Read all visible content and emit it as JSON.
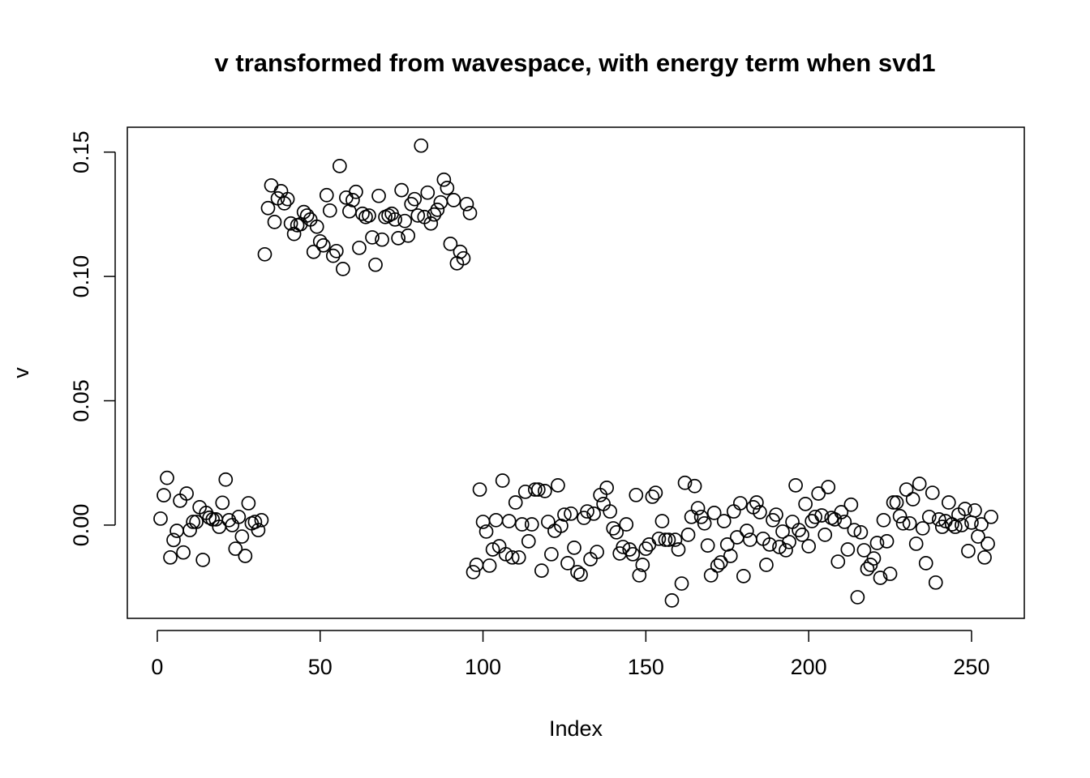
{
  "chart_data": {
    "type": "scatter",
    "title": "v transformed from wavespace, with energy term when svd1",
    "x_label": "Index",
    "y_label": "v",
    "color": "#000000",
    "xlim": [
      -9.2,
      266.2
    ],
    "ylim": [
      -0.0375,
      0.16
    ],
    "xticks": [
      0,
      50,
      100,
      150,
      200,
      250
    ],
    "yticks": [
      {
        "value": 0,
        "label": "0.00"
      },
      {
        "value": 0.05,
        "label": "0.05"
      },
      {
        "value": 0.1,
        "label": "0.10"
      },
      {
        "value": 0.15,
        "label": "0.15"
      }
    ],
    "x": [
      1,
      2,
      3,
      4,
      5,
      6,
      7,
      8,
      9,
      10,
      11,
      12,
      13,
      14,
      15,
      16,
      17,
      18,
      19,
      20,
      21,
      22,
      23,
      24,
      25,
      26,
      27,
      28,
      29,
      30,
      31,
      32,
      33,
      34,
      35,
      36,
      37,
      38,
      39,
      40,
      41,
      42,
      43,
      44,
      45,
      46,
      47,
      48,
      49,
      50,
      51,
      52,
      53,
      54,
      55,
      56,
      57,
      58,
      59,
      60,
      61,
      62,
      63,
      64,
      65,
      66,
      67,
      68,
      69,
      70,
      71,
      72,
      73,
      74,
      75,
      76,
      77,
      78,
      79,
      80,
      81,
      82,
      83,
      84,
      85,
      86,
      87,
      88,
      89,
      90,
      91,
      92,
      93,
      94,
      95,
      96,
      97,
      98,
      99,
      100,
      101,
      102,
      103,
      104,
      105,
      106,
      107,
      108,
      109,
      110,
      111,
      112,
      113,
      114,
      115,
      116,
      117,
      118,
      119,
      120,
      121,
      122,
      123,
      124,
      125,
      126,
      127,
      128,
      129,
      130,
      131,
      132,
      133,
      134,
      135,
      136,
      137,
      138,
      139,
      140,
      141,
      142,
      143,
      144,
      145,
      146,
      147,
      148,
      149,
      150,
      151,
      152,
      153,
      154,
      155,
      156,
      157,
      158,
      159,
      160,
      161,
      162,
      163,
      164,
      165,
      166,
      167,
      168,
      169,
      170,
      171,
      172,
      173,
      174,
      175,
      176,
      177,
      178,
      179,
      180,
      181,
      182,
      183,
      184,
      185,
      186,
      187,
      188,
      189,
      190,
      191,
      192,
      193,
      194,
      195,
      196,
      197,
      198,
      199,
      200,
      201,
      202,
      203,
      204,
      205,
      206,
      207,
      208,
      209,
      210,
      211,
      212,
      213,
      214,
      215,
      216,
      217,
      218,
      219,
      220,
      221,
      222,
      223,
      224,
      225,
      226,
      227,
      228,
      229,
      230,
      231,
      232,
      233,
      234,
      235,
      236,
      237,
      238,
      239,
      240,
      241,
      242,
      243,
      244,
      245,
      246,
      247,
      248,
      249,
      250,
      251,
      252,
      253,
      254,
      255,
      256
    ],
    "values": [
      0.0026,
      0.012,
      0.019,
      -0.013,
      -0.006,
      -0.0023,
      0.0098,
      -0.011,
      0.0127,
      -0.002,
      0.0013,
      0.0013,
      0.0072,
      -0.014,
      0.0049,
      0.003,
      0.0023,
      0.0023,
      -0.0007,
      0.009,
      0.0183,
      0.002,
      0,
      -0.0095,
      0.0033,
      -0.0046,
      -0.0124,
      0.0088,
      0.0007,
      0.0013,
      -0.002,
      0.002,
      0.1089,
      0.1275,
      0.1366,
      0.1219,
      0.1314,
      0.1343,
      0.1294,
      0.1311,
      0.1213,
      0.1171,
      0.1206,
      0.121,
      0.1259,
      0.1245,
      0.1229,
      0.1099,
      0.12,
      0.1141,
      0.1125,
      0.1327,
      0.1265,
      0.1083,
      0.1102,
      0.1444,
      0.103,
      0.1317,
      0.1262,
      0.1307,
      0.134,
      0.1115,
      0.1252,
      0.1239,
      0.1245,
      0.1157,
      0.1047,
      0.1324,
      0.1148,
      0.1239,
      0.1245,
      0.1252,
      0.1229,
      0.1154,
      0.1347,
      0.1223,
      0.1164,
      0.1291,
      0.1311,
      0.1245,
      0.1526,
      0.1239,
      0.1337,
      0.1213,
      0.1249,
      0.1268,
      0.1298,
      0.1389,
      0.1356,
      0.1131,
      0.1307,
      0.1053,
      0.1099,
      0.1073,
      0.1291,
      0.1255,
      -0.0189,
      -0.016,
      0.0143,
      0.0013,
      -0.0026,
      -0.0163,
      -0.0098,
      0.002,
      -0.0085,
      0.0179,
      -0.0117,
      0.0016,
      -0.013,
      0.0091,
      -0.013,
      0.0003,
      0.0134,
      -0.0065,
      0.0003,
      0.0143,
      0.0143,
      -0.0183,
      0.0137,
      0.0013,
      -0.0117,
      -0.0023,
      0.016,
      -0.0003,
      0.0042,
      -0.0153,
      0.0046,
      -0.0091,
      -0.0189,
      -0.0199,
      0.0029,
      0.0055,
      -0.0137,
      0.0046,
      -0.0108,
      0.0121,
      0.0085,
      0.015,
      0.0055,
      -0.0013,
      -0.0029,
      -0.0114,
      -0.0088,
      0.0003,
      -0.0098,
      -0.0117,
      0.0121,
      -0.0202,
      -0.016,
      -0.0095,
      -0.0078,
      0.0114,
      0.013,
      -0.0055,
      0.0016,
      -0.0059,
      -0.0059,
      -0.0303,
      -0.0059,
      -0.0098,
      -0.0235,
      0.017,
      -0.0039,
      0.0033,
      0.0157,
      0.0068,
      0.0033,
      0.0007,
      -0.0082,
      -0.0202,
      0.0049,
      -0.0163,
      -0.015,
      0.0016,
      -0.0078,
      -0.0124,
      0.0055,
      -0.0049,
      0.0088,
      -0.0205,
      -0.0023,
      -0.0059,
      0.0072,
      0.0091,
      0.0052,
      -0.0055,
      -0.016,
      -0.0078,
      0.002,
      0.0042,
      -0.0088,
      -0.0026,
      -0.0101,
      -0.0068,
      0.0013,
      0.016,
      -0.002,
      -0.0039,
      0.0085,
      -0.0085,
      0.0016,
      0.0033,
      0.0127,
      0.0039,
      -0.0039,
      0.0153,
      0.0029,
      0.0023,
      -0.0147,
      0.0052,
      0.0013,
      -0.0098,
      0.0082,
      -0.002,
      -0.029,
      -0.0029,
      -0.0101,
      -0.0176,
      -0.016,
      -0.0134,
      -0.0072,
      -0.0212,
      0.002,
      -0.0065,
      -0.0196,
      0.0091,
      0.0091,
      0.0036,
      0.0007,
      0.0143,
      0.0007,
      0.0104,
      -0.0075,
      0.0166,
      -0.0013,
      -0.0153,
      0.0033,
      0.013,
      -0.0231,
      0.0023,
      -0.0007,
      0.0016,
      0.0091,
      0.0003,
      -0.0007,
      0.0042,
      0,
      0.0065,
      -0.0104,
      0.001,
      0.0059,
      -0.0046,
      0.0003,
      -0.013,
      -0.0075,
      0.0033
    ]
  }
}
